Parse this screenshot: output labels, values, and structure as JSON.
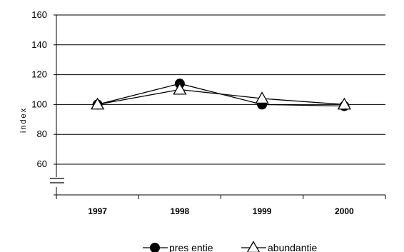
{
  "chart_data": {
    "type": "line",
    "categories": [
      "1997",
      "1998",
      "1999",
      "2000"
    ],
    "ylabel": "index",
    "ylim": [
      50,
      160
    ],
    "yticks": [
      60,
      80,
      100,
      120,
      140,
      160
    ],
    "grid": true,
    "axis_break": true,
    "legend_position": "bottom",
    "series": [
      {
        "name": "pres entie",
        "marker": "filled-circle",
        "color": "#000000",
        "values": [
          100,
          114,
          100,
          99
        ]
      },
      {
        "name": "abundantie",
        "marker": "open-triangle",
        "color": "#000000",
        "values": [
          100,
          110,
          104,
          100
        ]
      }
    ]
  }
}
